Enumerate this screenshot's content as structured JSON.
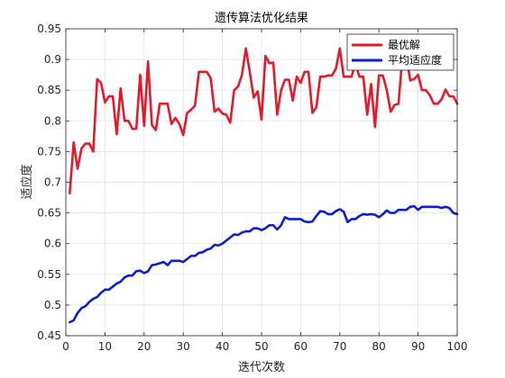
{
  "chart_data": {
    "type": "line",
    "title": "遗传算法优化结果",
    "xlabel": "迭代次数",
    "ylabel": "适应度",
    "xlim": [
      0,
      100
    ],
    "ylim": [
      0.45,
      0.95
    ],
    "xticks": [
      0,
      10,
      20,
      30,
      40,
      50,
      60,
      70,
      80,
      90,
      100
    ],
    "yticks": [
      0.45,
      0.5,
      0.55,
      0.6,
      0.65,
      0.7,
      0.75,
      0.8,
      0.85,
      0.9,
      0.95
    ],
    "grid": true,
    "legend_position": "top-right",
    "series": [
      {
        "name": "最优解",
        "color": "#e6192b",
        "x": [
          1,
          2,
          3,
          4,
          5,
          6,
          7,
          8,
          9,
          10,
          11,
          12,
          13,
          14,
          15,
          16,
          17,
          18,
          19,
          20,
          21,
          22,
          23,
          24,
          25,
          26,
          27,
          28,
          29,
          30,
          31,
          32,
          33,
          34,
          35,
          36,
          37,
          38,
          39,
          40,
          41,
          42,
          43,
          44,
          45,
          46,
          47,
          48,
          49,
          50,
          51,
          52,
          53,
          54,
          55,
          56,
          57,
          58,
          59,
          60,
          61,
          62,
          63,
          64,
          65,
          66,
          67,
          68,
          69,
          70,
          71,
          72,
          73,
          74,
          75,
          76,
          77,
          78,
          79,
          80,
          81,
          82,
          83,
          84,
          85,
          86,
          87,
          88,
          89,
          90,
          91,
          92,
          93,
          94,
          95,
          96,
          97,
          98,
          99,
          100
        ],
        "values": [
          0.682,
          0.765,
          0.722,
          0.755,
          0.763,
          0.763,
          0.75,
          0.868,
          0.862,
          0.83,
          0.84,
          0.84,
          0.778,
          0.853,
          0.8,
          0.8,
          0.787,
          0.787,
          0.875,
          0.792,
          0.897,
          0.793,
          0.785,
          0.828,
          0.828,
          0.828,
          0.795,
          0.805,
          0.795,
          0.777,
          0.813,
          0.818,
          0.825,
          0.88,
          0.88,
          0.88,
          0.87,
          0.815,
          0.82,
          0.812,
          0.81,
          0.797,
          0.85,
          0.856,
          0.875,
          0.918,
          0.88,
          0.838,
          0.848,
          0.802,
          0.906,
          0.894,
          0.895,
          0.81,
          0.85,
          0.867,
          0.867,
          0.833,
          0.872,
          0.862,
          0.88,
          0.88,
          0.813,
          0.822,
          0.872,
          0.872,
          0.874,
          0.874,
          0.885,
          0.918,
          0.872,
          0.872,
          0.872,
          0.894,
          0.872,
          0.872,
          0.81,
          0.86,
          0.79,
          0.874,
          0.874,
          0.85,
          0.815,
          0.826,
          0.828,
          0.905,
          0.905,
          0.866,
          0.868,
          0.875,
          0.85,
          0.85,
          0.842,
          0.828,
          0.828,
          0.835,
          0.851,
          0.84,
          0.84,
          0.828
        ]
      },
      {
        "name": "平均适应度",
        "color": "#0a1ed2",
        "x": [
          1,
          2,
          3,
          4,
          5,
          6,
          7,
          8,
          9,
          10,
          11,
          12,
          13,
          14,
          15,
          16,
          17,
          18,
          19,
          20,
          21,
          22,
          23,
          24,
          25,
          26,
          27,
          28,
          29,
          30,
          31,
          32,
          33,
          34,
          35,
          36,
          37,
          38,
          39,
          40,
          41,
          42,
          43,
          44,
          45,
          46,
          47,
          48,
          49,
          50,
          51,
          52,
          53,
          54,
          55,
          56,
          57,
          58,
          59,
          60,
          61,
          62,
          63,
          64,
          65,
          66,
          67,
          68,
          69,
          70,
          71,
          72,
          73,
          74,
          75,
          76,
          77,
          78,
          79,
          80,
          81,
          82,
          83,
          84,
          85,
          86,
          87,
          88,
          89,
          90,
          91,
          92,
          93,
          94,
          95,
          96,
          97,
          98,
          99,
          100
        ],
        "values": [
          0.472,
          0.475,
          0.487,
          0.495,
          0.498,
          0.505,
          0.51,
          0.513,
          0.52,
          0.525,
          0.525,
          0.53,
          0.535,
          0.538,
          0.545,
          0.548,
          0.548,
          0.555,
          0.556,
          0.552,
          0.555,
          0.565,
          0.566,
          0.568,
          0.57,
          0.565,
          0.572,
          0.572,
          0.572,
          0.57,
          0.575,
          0.58,
          0.58,
          0.585,
          0.586,
          0.59,
          0.592,
          0.598,
          0.597,
          0.6,
          0.605,
          0.61,
          0.615,
          0.614,
          0.618,
          0.62,
          0.62,
          0.625,
          0.625,
          0.622,
          0.625,
          0.63,
          0.63,
          0.623,
          0.63,
          0.643,
          0.64,
          0.64,
          0.64,
          0.64,
          0.636,
          0.635,
          0.636,
          0.645,
          0.653,
          0.652,
          0.648,
          0.648,
          0.653,
          0.656,
          0.652,
          0.635,
          0.64,
          0.64,
          0.645,
          0.648,
          0.647,
          0.648,
          0.647,
          0.643,
          0.648,
          0.654,
          0.65,
          0.65,
          0.655,
          0.655,
          0.655,
          0.66,
          0.661,
          0.655,
          0.66,
          0.66,
          0.66,
          0.66,
          0.66,
          0.658,
          0.66,
          0.658,
          0.65,
          0.648
        ]
      }
    ]
  }
}
